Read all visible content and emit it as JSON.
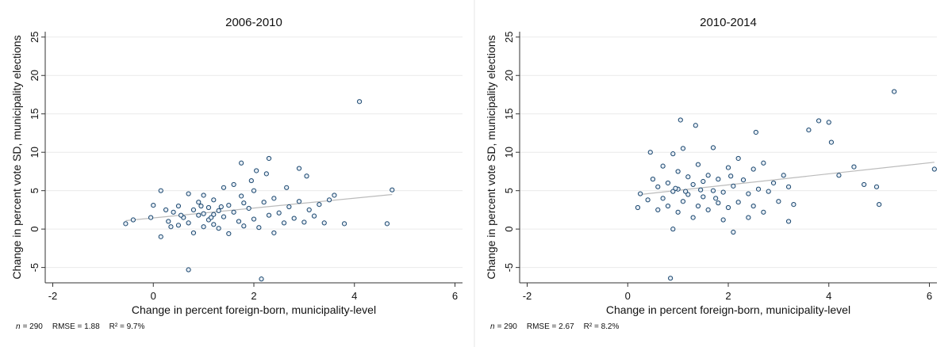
{
  "chart_data": [
    {
      "type": "scatter",
      "title": "2006-2010",
      "xlabel": "Change in percent foreign-born, municipality-level",
      "ylabel": "Change in percent vote SD, municipality elections",
      "note": {
        "n": "n",
        "n_value": "= 290",
        "rmse": "RMSE =  1.88",
        "r2": "R² = 9.7%"
      },
      "xlim": [
        -2.15,
        6.15
      ],
      "ylim": [
        -7,
        25.7
      ],
      "xticks": [
        -2,
        0,
        2,
        4,
        6
      ],
      "yticks": [
        -5,
        0,
        5,
        10,
        15,
        20,
        25
      ],
      "grid": true,
      "color": "#1a476f",
      "fit_line": {
        "x": [
          -0.55,
          4.75
        ],
        "y": [
          1.1,
          4.5
        ]
      },
      "x": [
        4.1,
        4.75,
        4.65,
        3.8,
        0.7,
        2.15,
        1.75,
        2.3,
        2.9,
        2.05,
        -0.55,
        -0.4,
        0.15,
        0.15,
        0.0,
        -0.05,
        3.5,
        3.6,
        3.05,
        2.65,
        0.3,
        0.4,
        0.5,
        0.5,
        0.6,
        0.7,
        0.7,
        0.8,
        0.8,
        0.9,
        0.9,
        1.0,
        1.0,
        1.0,
        1.1,
        1.1,
        1.2,
        1.2,
        1.2,
        1.3,
        1.3,
        1.4,
        1.4,
        1.5,
        1.5,
        1.6,
        1.6,
        1.7,
        1.8,
        1.8,
        1.9,
        2.0,
        2.0,
        2.1,
        2.2,
        2.3,
        2.4,
        2.4,
        2.5,
        2.6,
        2.7,
        2.8,
        2.9,
        3.0,
        3.1,
        3.2,
        3.3,
        3.4,
        0.95,
        1.15,
        1.35,
        0.55,
        1.75,
        1.95,
        2.25,
        0.25,
        0.35
      ],
      "y": [
        16.6,
        5.1,
        0.7,
        0.7,
        -5.3,
        -6.5,
        8.6,
        9.2,
        7.9,
        7.6,
        0.7,
        1.2,
        5.0,
        -1.0,
        3.1,
        1.5,
        3.8,
        4.4,
        6.9,
        5.4,
        1.0,
        2.2,
        0.5,
        3.0,
        1.5,
        4.6,
        0.8,
        2.5,
        -0.5,
        1.8,
        3.5,
        0.3,
        2.0,
        4.4,
        1.2,
        2.8,
        0.6,
        3.8,
        1.9,
        2.4,
        0.1,
        5.4,
        1.6,
        3.1,
        -0.6,
        2.2,
        5.8,
        1.0,
        3.4,
        0.4,
        2.7,
        1.3,
        5.0,
        0.2,
        3.5,
        1.8,
        -0.5,
        4.0,
        2.1,
        0.8,
        2.9,
        1.4,
        3.6,
        0.9,
        2.5,
        1.7,
        3.2,
        0.8,
        3.0,
        1.5,
        2.9,
        1.8,
        4.3,
        6.3,
        7.2,
        2.5,
        0.3
      ]
    },
    {
      "type": "scatter",
      "title": "2010-2014",
      "xlabel": "Change in percent foreign-born, municipality-level",
      "ylabel": "Change in percent vote SD, municipality elections",
      "note": {
        "n": "n",
        "n_value": "= 290",
        "rmse": "RMSE =  2.67",
        "r2": "R² = 8.2%"
      },
      "xlim": [
        -2.15,
        6.15
      ],
      "ylim": [
        -7,
        25.7
      ],
      "xticks": [
        -2,
        0,
        2,
        4,
        6
      ],
      "yticks": [
        -5,
        0,
        5,
        10,
        15,
        20,
        25
      ],
      "grid": true,
      "color": "#1a476f",
      "fit_line": {
        "x": [
          0.25,
          6.1
        ],
        "y": [
          4.5,
          8.7
        ]
      },
      "x": [
        5.3,
        6.1,
        4.0,
        3.8,
        3.6,
        1.05,
        1.35,
        2.55,
        0.85,
        2.1,
        4.05,
        5.0,
        4.95,
        4.7,
        4.2,
        4.5,
        3.3,
        0.2,
        0.9,
        0.25,
        0.45,
        0.4,
        0.5,
        0.6,
        0.6,
        0.7,
        0.7,
        0.8,
        0.8,
        0.9,
        0.9,
        1.0,
        1.0,
        1.0,
        1.1,
        1.1,
        1.2,
        1.2,
        1.3,
        1.3,
        1.4,
        1.4,
        1.5,
        1.5,
        1.6,
        1.6,
        1.7,
        1.7,
        1.8,
        1.8,
        1.9,
        1.9,
        2.0,
        2.0,
        2.1,
        2.2,
        2.2,
        2.3,
        2.4,
        2.4,
        2.5,
        2.5,
        2.6,
        2.7,
        2.7,
        2.8,
        2.9,
        3.0,
        3.1,
        3.2,
        3.2,
        1.15,
        1.45,
        0.95,
        1.75,
        2.05
      ],
      "y": [
        17.9,
        7.8,
        13.9,
        14.1,
        12.9,
        14.2,
        13.5,
        12.6,
        -6.4,
        -0.4,
        11.3,
        3.2,
        5.5,
        5.8,
        7.0,
        8.1,
        3.2,
        2.8,
        0.0,
        4.6,
        10.0,
        3.8,
        6.5,
        2.5,
        5.5,
        4.0,
        8.2,
        3.0,
        6.0,
        4.9,
        9.8,
        2.2,
        5.2,
        7.5,
        3.6,
        10.5,
        4.5,
        6.8,
        1.5,
        5.8,
        3.0,
        8.4,
        4.2,
        6.2,
        2.5,
        7.0,
        5.0,
        10.6,
        3.4,
        6.5,
        1.2,
        4.8,
        8.0,
        2.8,
        5.6,
        9.2,
        3.5,
        6.4,
        1.5,
        4.6,
        7.8,
        3.0,
        5.2,
        2.2,
        8.6,
        4.9,
        6.0,
        3.6,
        7.0,
        5.5,
        1.0,
        4.9,
        5.1,
        5.3,
        4.0,
        6.9
      ]
    }
  ]
}
